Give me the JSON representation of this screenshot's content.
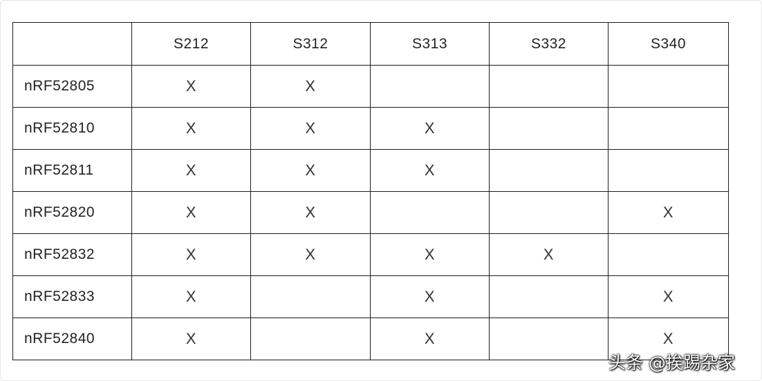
{
  "table": {
    "columns": [
      "S212",
      "S312",
      "S313",
      "S332",
      "S340"
    ],
    "rows": [
      {
        "label": "nRF52805",
        "cells": [
          "X",
          "X",
          null,
          null,
          null
        ]
      },
      {
        "label": "nRF52810",
        "cells": [
          "X",
          "X",
          "X",
          null,
          null
        ]
      },
      {
        "label": "nRF52811",
        "cells": [
          "X",
          "X",
          "X",
          null,
          null
        ]
      },
      {
        "label": "nRF52820",
        "cells": [
          "X",
          "X",
          null,
          null,
          "X"
        ]
      },
      {
        "label": "nRF52832",
        "cells": [
          "X",
          "X",
          "X",
          "X",
          null
        ]
      },
      {
        "label": "nRF52833",
        "cells": [
          "X",
          null,
          "X",
          null,
          "X"
        ]
      },
      {
        "label": "nRF52840",
        "cells": [
          "X",
          null,
          "X",
          null,
          "X"
        ]
      }
    ]
  },
  "watermark": "头条 @挨踢杂家"
}
